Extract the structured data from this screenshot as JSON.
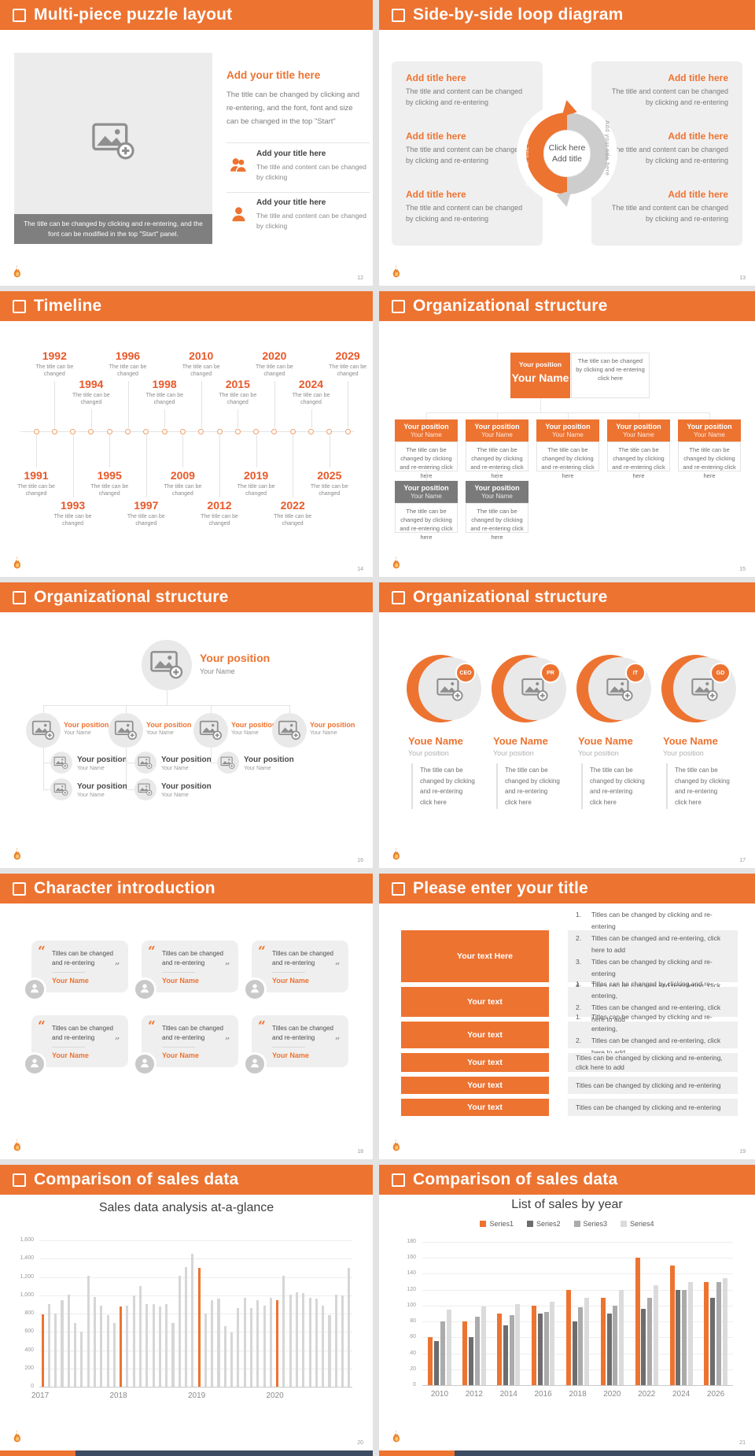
{
  "accent": "#ED7331",
  "slides": [
    {
      "type": "puzzle",
      "header": "Multi-piece puzzle layout",
      "page_no": "12",
      "image_caption": "The title can be changed by clicking and re-entering, and the font can be modified in the top \"Start\" panel.",
      "title": "Add your title here",
      "body": "The title can be changed by clicking and re-entering, and the font, font and size can be changed in the top \"Start\"",
      "items": [
        {
          "icon": "people-icon",
          "title": "Add your title here",
          "body": "The title and content can be changed by clicking"
        },
        {
          "icon": "person-icon",
          "title": "Add your title here",
          "body": "The title and content can be changed by clicking"
        }
      ]
    },
    {
      "type": "loop",
      "header": "Side-by-side loop diagram",
      "page_no": "13",
      "left_items": [
        {
          "title": "Add title here",
          "body": "The title and content can be changed by clicking and re-entering"
        },
        {
          "title": "Add title here",
          "body": "The title and content can be changed by clicking and re-entering"
        },
        {
          "title": "Add title here",
          "body": "The title and content can be changed by clicking and re-entering"
        }
      ],
      "right_items": [
        {
          "title": "Add title here",
          "body": "The title and content can be changed by clicking and re-entering"
        },
        {
          "title": "Add title here",
          "body": "The title and content can be changed by clicking and re-entering"
        },
        {
          "title": "Add title here",
          "body": "The title and content can be changed by clicking and re-entering"
        }
      ],
      "center": [
        "Click here",
        "Add title"
      ],
      "arrow_text_left": "Add your title here",
      "arrow_text_right": "Add your title here"
    },
    {
      "type": "timeline",
      "header": "Timeline",
      "page_no": "14",
      "caption": "The title can be changed",
      "markers": [
        {
          "year": "1991",
          "side": "below",
          "level": 0
        },
        {
          "year": "1992",
          "side": "above",
          "level": 0
        },
        {
          "year": "1993",
          "side": "below",
          "level": 1
        },
        {
          "year": "1994",
          "side": "above",
          "level": 1
        },
        {
          "year": "1995",
          "side": "below",
          "level": 0
        },
        {
          "year": "1996",
          "side": "above",
          "level": 0
        },
        {
          "year": "1997",
          "side": "below",
          "level": 1
        },
        {
          "year": "1998",
          "side": "above",
          "level": 1
        },
        {
          "year": "2009",
          "side": "below",
          "level": 0
        },
        {
          "year": "2010",
          "side": "above",
          "level": 0
        },
        {
          "year": "2012",
          "side": "below",
          "level": 1
        },
        {
          "year": "2015",
          "side": "above",
          "level": 1
        },
        {
          "year": "2019",
          "side": "below",
          "level": 0
        },
        {
          "year": "2020",
          "side": "above",
          "level": 0
        },
        {
          "year": "2022",
          "side": "below",
          "level": 1
        },
        {
          "year": "2024",
          "side": "above",
          "level": 1
        },
        {
          "year": "2025",
          "side": "below",
          "level": 0
        },
        {
          "year": "2029",
          "side": "above",
          "level": 0
        }
      ]
    },
    {
      "type": "org-boxes",
      "header": "Organizational structure",
      "page_no": "15",
      "desc": "The title can be changed by clicking and re-entering click here",
      "root": {
        "position": "Your position",
        "name": "Your Name"
      },
      "level2": [
        {
          "position": "Your position",
          "name": "Your Name"
        },
        {
          "position": "Your position",
          "name": "Your Name"
        },
        {
          "position": "Your position",
          "name": "Your Name"
        },
        {
          "position": "Your position",
          "name": "Your Name"
        },
        {
          "position": "Your position",
          "name": "Your Name"
        }
      ],
      "level3": [
        {
          "position": "Your position",
          "name": "Your Name"
        },
        {
          "position": "Your position",
          "name": "Your Name"
        }
      ]
    },
    {
      "type": "org-circles",
      "header": "Organizational structure",
      "page_no": "16",
      "root": {
        "position": "Your position",
        "name": "Your Name"
      },
      "level2": [
        {
          "position": "Your position",
          "name": "Your Name"
        },
        {
          "position": "Your position",
          "name": "Your Name"
        },
        {
          "position": "Your position",
          "name": "Your Name"
        },
        {
          "position": "Your position",
          "name": "Your Name"
        }
      ],
      "level3": [
        {
          "position": "Your position",
          "name": "Your Name"
        },
        {
          "position": "Your position",
          "name": "Your Name"
        },
        {
          "position": "Your position",
          "name": "Your Name"
        }
      ],
      "level4": [
        {
          "position": "Your position",
          "name": "Your Name"
        },
        {
          "position": "Your position",
          "name": "Your Name"
        }
      ]
    },
    {
      "type": "org-badges",
      "header": "Organizational structure",
      "page_no": "17",
      "desc_lines": [
        "The title can be",
        "changed by clicking",
        "and re-entering",
        "click here"
      ],
      "people": [
        {
          "badge": "CEO",
          "name": "Youe Name",
          "position": "Your position"
        },
        {
          "badge": "PR",
          "name": "Youe Name",
          "position": "Your position"
        },
        {
          "badge": "IT",
          "name": "Youe Name",
          "position": "Your position"
        },
        {
          "badge": "GD",
          "name": "Youe Name",
          "position": "Your position"
        }
      ]
    },
    {
      "type": "characters",
      "header": "Character introduction",
      "page_no": "18",
      "cards": [
        {
          "quote": "Titles can be changed and re-entering",
          "name": "Your Name"
        },
        {
          "quote": "Titles can be changed and re-entering",
          "name": "Your Name"
        },
        {
          "quote": "Titles can be changed and re-entering",
          "name": "Your Name"
        },
        {
          "quote": "Titles can be changed and re-entering",
          "name": "Your Name"
        },
        {
          "quote": "Titles can be changed and re-entering",
          "name": "Your Name"
        },
        {
          "quote": "Titles can be changed and re-entering",
          "name": "Your Name"
        }
      ]
    },
    {
      "type": "enter-title",
      "header": "Please enter your title",
      "page_no": "19",
      "rows": [
        {
          "button": "Your text Here",
          "icon": "workstation-icon",
          "numbered": true,
          "list": [
            "Titles can be changed by clicking and re-entering",
            "Titles can be changed and re-entering, click here to add",
            "Titles can be changed by clicking and re-entering",
            "Titles can be changed and re-entering, click here to add"
          ]
        },
        {
          "button": "Your text",
          "icon": "person-settings-icon",
          "numbered": true,
          "list": [
            "Titles can be changed by clicking and re-entering,",
            "Titles can be changed and re-entering, click here to add"
          ]
        },
        {
          "button": "Your text",
          "icon": "sync-icon",
          "numbered": true,
          "list": [
            "Titles can be changed by clicking and re-entering,",
            "Titles can be changed and re-entering, click here to add"
          ]
        },
        {
          "button": "Your text",
          "icon": "bar-chart-icon",
          "numbered": false,
          "list": [
            "Titles can be changed by clicking and re-entering, click here to add"
          ]
        },
        {
          "button": "Your text",
          "icon": "team-icon",
          "numbered": false,
          "list": [
            "Titles can be changed by clicking and re-entering"
          ]
        },
        {
          "button": "Your text",
          "icon": "speaker-icon",
          "numbered": false,
          "list": [
            "Titles can be changed by clicking and re-entering"
          ]
        }
      ]
    },
    {
      "type": "chart",
      "header": "Comparison of sales data",
      "page_no": "20",
      "chart_ref": 0
    },
    {
      "type": "chart",
      "header": "Comparison of sales data",
      "page_no": "21",
      "chart_ref": 1
    }
  ],
  "chart_data": [
    {
      "type": "bar",
      "title": "Sales data analysis at-a-glance",
      "categories": [
        "2017",
        "2018",
        "2019",
        "2020"
      ],
      "values": [
        790,
        900,
        800,
        950,
        1010,
        700,
        600,
        1210,
        980,
        890,
        780,
        700,
        880,
        890,
        1000,
        1100,
        900,
        900,
        880,
        900,
        700,
        1210,
        1310,
        1450,
        1300,
        800,
        950,
        960,
        660,
        590,
        860,
        970,
        860,
        950,
        890,
        975,
        950,
        1210,
        1010,
        1030,
        1020,
        970,
        960,
        890,
        780,
        1010,
        1000,
        1300
      ],
      "highlight_indices": [
        0,
        12,
        24,
        36
      ],
      "bar_color": "#D6D6D6",
      "highlight_color": "#ED7331",
      "xlabel": "",
      "ylabel": "",
      "ylim": [
        0,
        1600
      ],
      "ytick_step": 200,
      "grid": true
    },
    {
      "type": "grouped-bar",
      "title": "List of sales by year",
      "categories": [
        "2010",
        "2012",
        "2014",
        "2016",
        "2018",
        "2020",
        "2022",
        "2024",
        "2026"
      ],
      "series": [
        {
          "name": "Series1",
          "color": "#ED7331",
          "values": [
            60,
            80,
            90,
            100,
            120,
            110,
            160,
            150,
            130
          ]
        },
        {
          "name": "Series2",
          "color": "#6D6D6D",
          "values": [
            55,
            60,
            75,
            90,
            80,
            90,
            96,
            120,
            110
          ]
        },
        {
          "name": "Series3",
          "color": "#ABABAB",
          "values": [
            80,
            86,
            88,
            92,
            98,
            100,
            110,
            120,
            130
          ]
        },
        {
          "name": "Series4",
          "color": "#DBDBDB",
          "values": [
            95,
            99,
            102,
            105,
            110,
            120,
            126,
            130,
            135
          ]
        }
      ],
      "xlabel": "",
      "ylabel": "",
      "ylim": [
        0,
        180
      ],
      "ytick_step": 20,
      "grid": true,
      "legend_position": "top"
    }
  ]
}
